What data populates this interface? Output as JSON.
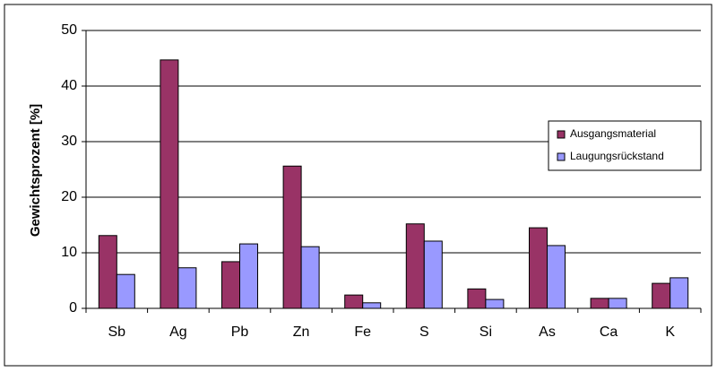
{
  "chart_data": {
    "type": "bar",
    "y_label": "Gewichtsprozent [%]",
    "categories": [
      "Sb",
      "Ag",
      "Pb",
      "Zn",
      "Fe",
      "S",
      "Si",
      "As",
      "Ca",
      "K"
    ],
    "series": [
      {
        "name": "Ausgangsmaterial",
        "color": "#993366",
        "values": [
          13.1,
          44.7,
          8.4,
          25.6,
          2.4,
          15.2,
          3.5,
          14.5,
          1.8,
          4.5
        ]
      },
      {
        "name": "Laugungsrückstand",
        "color": "#9999ff",
        "values": [
          6.1,
          7.3,
          11.6,
          11.1,
          1.0,
          12.1,
          1.6,
          11.3,
          1.8,
          5.5
        ]
      }
    ],
    "ylim": [
      0,
      50
    ],
    "yticks": [
      0,
      10,
      20,
      30,
      40,
      50
    ],
    "grid": true,
    "legend": "right"
  }
}
